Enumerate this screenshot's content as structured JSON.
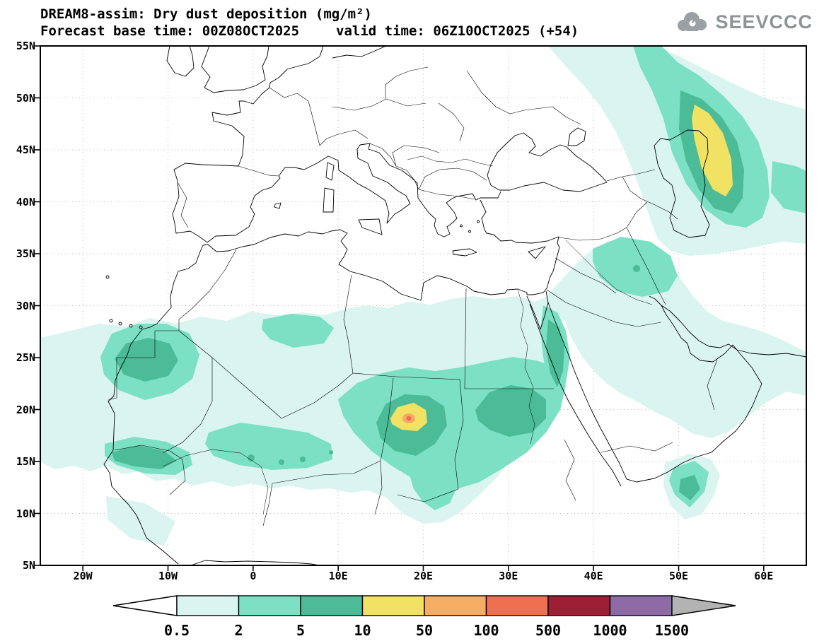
{
  "header": {
    "model_line": "DREAM8-assim: Dry dust deposition (mg/m²)",
    "base_label": "Forecast base time: 00Z08OCT2025",
    "valid_label": "valid time: 06Z10OCT2025 (+54)"
  },
  "logo": {
    "name": "SEEVCCC",
    "icon": "cloud-icon"
  },
  "map": {
    "lat_ticks": [
      {
        "label": "55N",
        "deg": 55
      },
      {
        "label": "50N",
        "deg": 50
      },
      {
        "label": "45N",
        "deg": 45
      },
      {
        "label": "40N",
        "deg": 40
      },
      {
        "label": "35N",
        "deg": 35
      },
      {
        "label": "30N",
        "deg": 30
      },
      {
        "label": "25N",
        "deg": 25
      },
      {
        "label": "20N",
        "deg": 20
      },
      {
        "label": "15N",
        "deg": 15
      },
      {
        "label": "10N",
        "deg": 10
      },
      {
        "label": "5N",
        "deg": 5
      }
    ],
    "lon_ticks": [
      {
        "label": "20W",
        "deg": -20
      },
      {
        "label": "10W",
        "deg": -10
      },
      {
        "label": "0",
        "deg": 0
      },
      {
        "label": "10E",
        "deg": 10
      },
      {
        "label": "20E",
        "deg": 20
      },
      {
        "label": "30E",
        "deg": 30
      },
      {
        "label": "40E",
        "deg": 40
      },
      {
        "label": "50E",
        "deg": 50
      },
      {
        "label": "60E",
        "deg": 60
      }
    ]
  },
  "colorbar": {
    "boundary_labels": [
      "0.5",
      "2",
      "5",
      "10",
      "50",
      "100",
      "500",
      "1000",
      "1500"
    ],
    "segment_colors": [
      "#daf4ef",
      "#7ce0c4",
      "#4cbb97",
      "#f2e263",
      "#f6ad63",
      "#ee7050",
      "#9d1f35",
      "#8e6ba6"
    ],
    "left_arrow_color": "#ffffff",
    "right_arrow_color": "#b3b3b3",
    "outline_color": "#000000"
  }
}
